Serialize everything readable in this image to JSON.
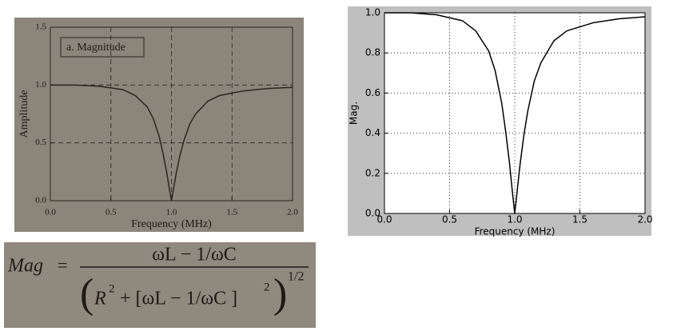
{
  "chart_data": [
    {
      "type": "line",
      "title": "a. Magnitude",
      "x_label": "Frequency (MHz)",
      "y_label": "Amplitude",
      "x": [
        0.0,
        0.2,
        0.4,
        0.6,
        0.7,
        0.8,
        0.85,
        0.9,
        0.93,
        0.96,
        0.98,
        1.0,
        1.02,
        1.04,
        1.07,
        1.1,
        1.15,
        1.2,
        1.3,
        1.4,
        1.6,
        1.8,
        2.0
      ],
      "values": [
        1.0,
        1.0,
        0.99,
        0.96,
        0.91,
        0.81,
        0.71,
        0.55,
        0.41,
        0.25,
        0.12,
        0.0,
        0.12,
        0.24,
        0.39,
        0.51,
        0.66,
        0.75,
        0.86,
        0.91,
        0.95,
        0.97,
        0.98
      ],
      "color": "#2a2622",
      "xlim": [
        0,
        2
      ],
      "ylim": [
        0,
        1.5
      ],
      "xticks": [
        {
          "value": 0,
          "label": "0.0"
        },
        0.5,
        {
          "value": 1,
          "label": "1.0"
        },
        1.5,
        {
          "value": 2,
          "label": "2.0"
        }
      ],
      "yticks": [
        {
          "value": 0,
          "label": "0.0"
        },
        0.5,
        {
          "value": 1,
          "label": "1.0"
        },
        1.5
      ],
      "grid": true,
      "grid_style": "dashed"
    },
    {
      "type": "line",
      "x_label": "Frequency (MHz)",
      "y_label": "Mag.",
      "x": [
        0.0,
        0.2,
        0.4,
        0.6,
        0.7,
        0.8,
        0.85,
        0.9,
        0.93,
        0.96,
        0.98,
        1.0,
        1.02,
        1.04,
        1.07,
        1.1,
        1.15,
        1.2,
        1.3,
        1.4,
        1.6,
        1.8,
        2.0
      ],
      "values": [
        1.0,
        1.0,
        0.99,
        0.96,
        0.91,
        0.81,
        0.71,
        0.55,
        0.41,
        0.25,
        0.12,
        0.0,
        0.12,
        0.24,
        0.39,
        0.51,
        0.66,
        0.75,
        0.86,
        0.91,
        0.95,
        0.97,
        0.98
      ],
      "color": "#000000",
      "xlim": [
        0,
        2
      ],
      "ylim": [
        0,
        1
      ],
      "xticks": [
        {
          "value": 0,
          "label": "0.0"
        },
        0.5,
        {
          "value": 1,
          "label": "1.0"
        },
        1.5,
        {
          "value": 2,
          "label": "2.0"
        }
      ],
      "yticks": [
        {
          "value": 0,
          "label": "0.0"
        },
        0.2,
        0.4,
        0.6,
        0.8,
        {
          "value": 1,
          "label": "1.0"
        }
      ],
      "grid": true,
      "grid_style": "dotted"
    }
  ],
  "formula": {
    "lhs": "Mag",
    "equals": "=",
    "numerator": "ωL − 1/ωC",
    "denominator": [
      "R",
      "2",
      "+ [ωL − 1/ωC ]",
      "2"
    ],
    "exponent": "1/2"
  }
}
